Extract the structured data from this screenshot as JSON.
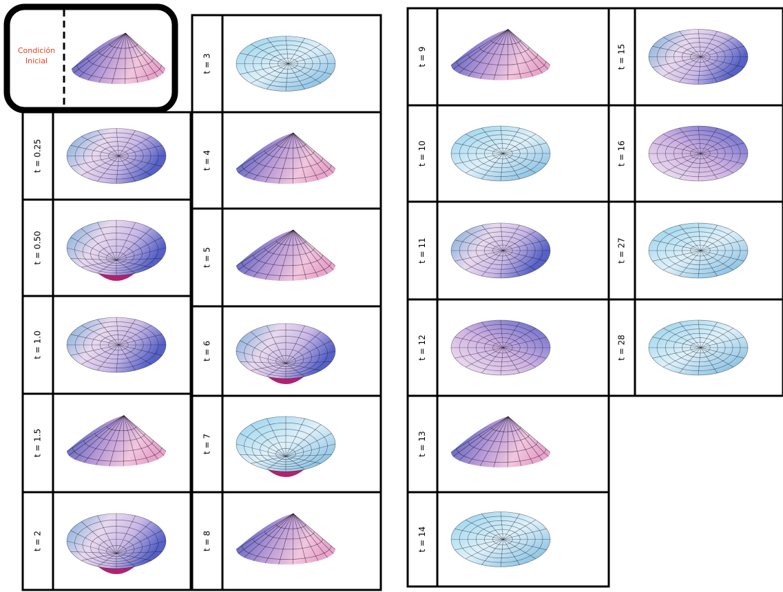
{
  "initial": {
    "label": "Condición Inicial"
  },
  "columns": [
    {
      "panels": [
        {
          "label": "t = 0.25"
        },
        {
          "label": "t = 0.50"
        },
        {
          "label": "t = 1.0"
        },
        {
          "label": "t = 1.5"
        },
        {
          "label": "t = 2"
        }
      ]
    },
    {
      "panels": [
        {
          "label": "t = 3"
        },
        {
          "label": "t = 4"
        },
        {
          "label": "t = 5"
        },
        {
          "label": "t = 6"
        },
        {
          "label": "t = 7"
        },
        {
          "label": "t = 8"
        }
      ]
    },
    {
      "panels": [
        {
          "label": "t = 9"
        },
        {
          "label": "t = 10"
        },
        {
          "label": "t = 11"
        },
        {
          "label": "t = 12"
        },
        {
          "label": "t = 13"
        },
        {
          "label": "t = 14"
        }
      ]
    },
    {
      "panels": [
        {
          "label": "t = 15"
        },
        {
          "label": "t = 16"
        },
        {
          "label": "t = 27"
        },
        {
          "label": "t = 28"
        }
      ]
    }
  ]
}
